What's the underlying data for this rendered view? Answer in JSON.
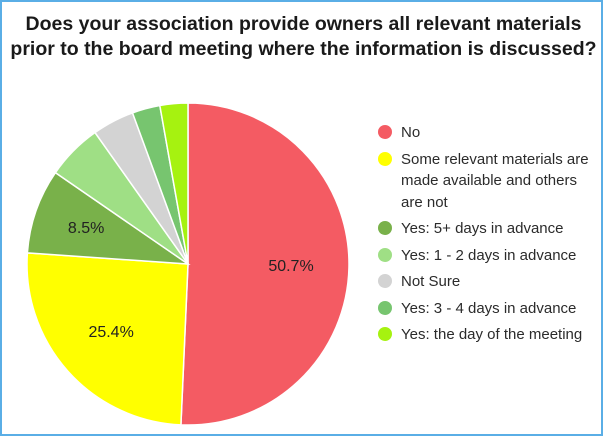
{
  "chart_data": {
    "type": "pie",
    "title_lines": [
      "Does your association provide owners all relevant materials",
      "prior to the board meeting where the information is discussed?"
    ],
    "legend_position": "right",
    "slices": [
      {
        "label": "No",
        "value": 50.7,
        "color": "#f45b63",
        "data_label": "50.7%"
      },
      {
        "label": "Some relevant materials are made available and others are not",
        "value": 25.4,
        "color": "#ffff00",
        "data_label": "25.4%"
      },
      {
        "label": "Yes: 5+ days in advance",
        "value": 8.5,
        "color": "#79b14a",
        "data_label": "8.5%"
      },
      {
        "label": "Yes: 1 - 2 days in advance",
        "value": 5.6,
        "color": "#9fdf85",
        "data_label": ""
      },
      {
        "label": "Not Sure",
        "value": 4.2,
        "color": "#d3d3d3",
        "data_label": ""
      },
      {
        "label": "Yes: 3 - 4 days in advance",
        "value": 2.8,
        "color": "#77c56f",
        "data_label": ""
      },
      {
        "label": "Yes: the day of the meeting",
        "value": 2.8,
        "color": "#a6f210",
        "data_label": ""
      }
    ]
  }
}
